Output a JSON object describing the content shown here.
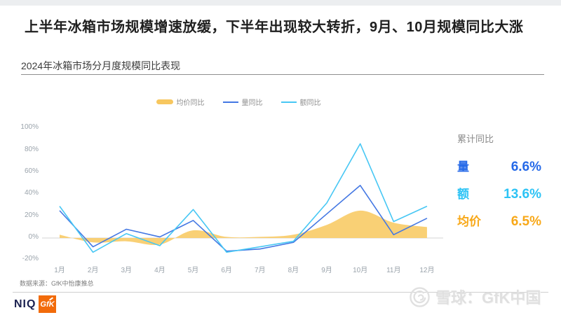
{
  "page": {
    "title": "上半年冰箱市场规模增速放缓，下半年出现较大转折，9月、10月规模同比大涨",
    "subtitle": "2024年冰箱市场分月度规模同比表现"
  },
  "chart_data": {
    "type": "line",
    "title": "2024年冰箱市场分月度规模同比表现",
    "categories": [
      "1月",
      "2月",
      "3月",
      "4月",
      "5月",
      "6月",
      "7月",
      "8月",
      "9月",
      "10月",
      "11月",
      "12月"
    ],
    "series": [
      {
        "name": "均价同比",
        "type": "area",
        "color": "#f9cc69",
        "legend_color": "#f7c75f",
        "values": [
          3,
          -4,
          -3,
          -6,
          7,
          1,
          1,
          3,
          12,
          25,
          14,
          10
        ]
      },
      {
        "name": "量同比",
        "type": "line",
        "color": "#4377e3",
        "legend_color": "#4377e3",
        "values": [
          25,
          -8,
          8,
          1,
          16,
          -12,
          -10,
          -4,
          22,
          48,
          3,
          18
        ]
      },
      {
        "name": "额同比",
        "type": "line",
        "color": "#47c7f4",
        "legend_color": "#47c7f4",
        "values": [
          29,
          -13,
          4,
          -7,
          26,
          -13,
          -8,
          -3,
          32,
          86,
          15,
          29
        ]
      }
    ],
    "ylim": [
      -20,
      100
    ],
    "ytick_labels": [
      "100%",
      "80%",
      "60%",
      "40%",
      "20%",
      "0%",
      "-20%"
    ],
    "ytick_values": [
      100,
      80,
      60,
      40,
      20,
      0,
      -20
    ],
    "unit": "%",
    "grid": "zero-baseline-only",
    "legend_position": "top-center"
  },
  "summary_panel": {
    "title": "累计同比",
    "rows": [
      {
        "label": "量",
        "value": "6.6%",
        "color": "#2569e8"
      },
      {
        "label": "额",
        "value": "13.6%",
        "color": "#2cc3f5"
      },
      {
        "label": "均价",
        "value": "6.5%",
        "color": "#f8a818"
      }
    ]
  },
  "footer": {
    "source": "数据来源：GfK中怡康推总",
    "logos": [
      {
        "name": "NIQ",
        "label": "NIQ"
      },
      {
        "name": "GfK",
        "label": "GfK"
      }
    ],
    "watermark": "雪球：GfK中国"
  }
}
